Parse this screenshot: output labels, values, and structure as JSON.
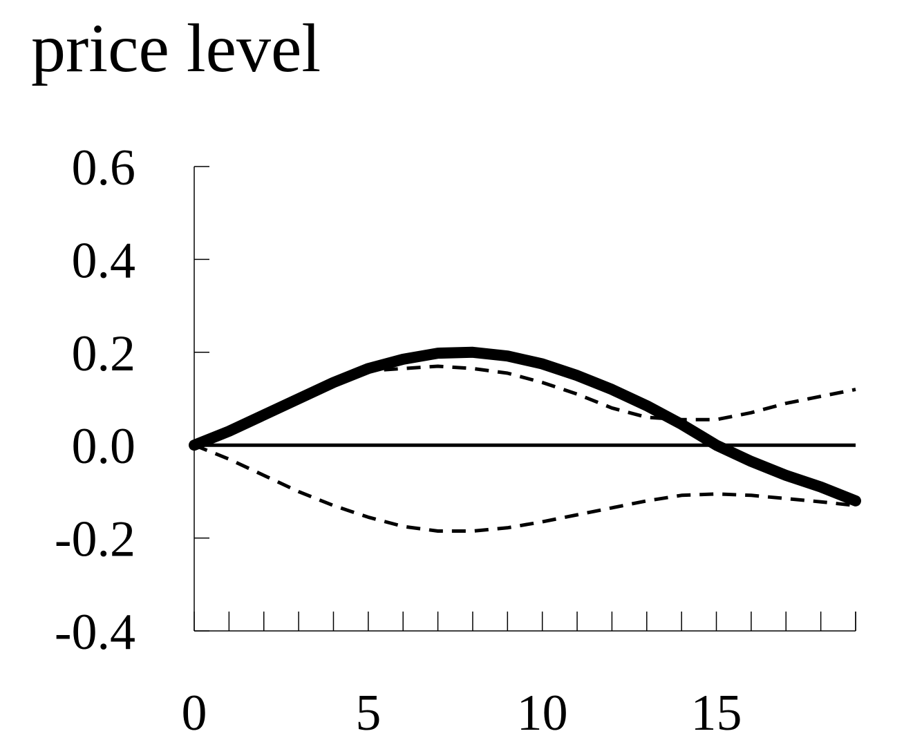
{
  "chart_data": {
    "type": "line",
    "title": "price level",
    "xlabel": "",
    "ylabel": "",
    "xlim": [
      0,
      19
    ],
    "ylim": [
      -0.4,
      0.6
    ],
    "xticks": [
      0,
      5,
      10,
      15
    ],
    "xtick_labels": [
      "0",
      "5",
      "10",
      "15"
    ],
    "yticks": [
      0.6,
      0.4,
      0.2,
      0.0,
      -0.2,
      -0.4
    ],
    "ytick_labels": [
      "0.6",
      "0.4",
      "0.2",
      "0.0",
      "-0.2",
      "-0.4"
    ],
    "grid": false,
    "legend": "none",
    "x": [
      0,
      1,
      2,
      3,
      4,
      5,
      6,
      7,
      8,
      9,
      10,
      11,
      12,
      13,
      14,
      15,
      16,
      17,
      18,
      19
    ],
    "series": [
      {
        "style": "solid-thick",
        "color": "#000000",
        "values": [
          0.0,
          0.03,
          0.065,
          0.1,
          0.135,
          0.165,
          0.185,
          0.198,
          0.2,
          0.192,
          0.175,
          0.15,
          0.12,
          0.085,
          0.045,
          0.0,
          -0.035,
          -0.065,
          -0.09,
          -0.12
        ]
      },
      {
        "style": "dashed",
        "color": "#000000",
        "values": [
          0.0,
          0.03,
          0.065,
          0.1,
          0.135,
          0.16,
          0.165,
          0.17,
          0.165,
          0.155,
          0.135,
          0.11,
          0.08,
          0.06,
          0.055,
          0.055,
          0.07,
          0.09,
          0.105,
          0.12
        ]
      },
      {
        "style": "dashed",
        "color": "#000000",
        "values": [
          0.0,
          -0.03,
          -0.065,
          -0.1,
          -0.13,
          -0.155,
          -0.175,
          -0.185,
          -0.185,
          -0.178,
          -0.165,
          -0.15,
          -0.135,
          -0.12,
          -0.108,
          -0.105,
          -0.108,
          -0.115,
          -0.122,
          -0.13
        ]
      }
    ],
    "zero_line": 0.0
  }
}
